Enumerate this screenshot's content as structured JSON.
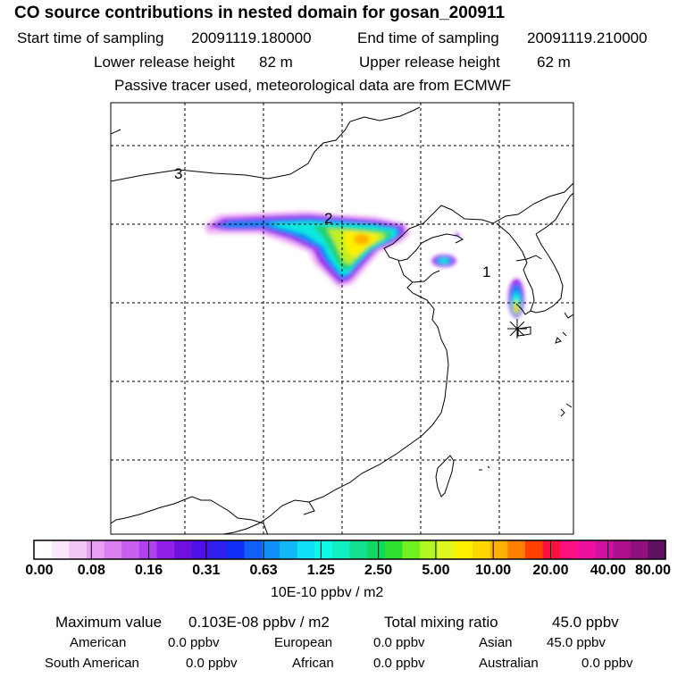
{
  "header": {
    "title": "CO  source contributions in nested domain for gosan_200911",
    "start_label": "Start time of sampling",
    "start_value": "20091119.180000",
    "end_label": "End time of sampling",
    "end_value": "20091119.210000",
    "lower_label": "Lower release height",
    "lower_value": "82 m",
    "upper_label": "Upper release height",
    "upper_value": "62 m",
    "tracer_note": "Passive tracer used, meteorological data are from ECMWF"
  },
  "map": {
    "region_labels": [
      "3",
      "2",
      "1"
    ],
    "receptor_marker": "asterisk-marker"
  },
  "colorbar": {
    "ticks": [
      "0.00",
      "0.08",
      "0.16",
      "0.31",
      "0.63",
      "1.25",
      "2.50",
      "5.00",
      "10.00",
      "20.00",
      "40.00",
      "80.00"
    ],
    "unit": "10E-10 ppbv / m2",
    "colors": [
      "#ffffff",
      "#fbe6fb",
      "#f4c8f6",
      "#eaa0f2",
      "#dc7ff0",
      "#c85ff0",
      "#b040f0",
      "#9020e8",
      "#7010e0",
      "#5010e8",
      "#3020f0",
      "#1030f8",
      "#1060f8",
      "#1090f8",
      "#10b8f8",
      "#10e0f8",
      "#10f8e8",
      "#10f0c0",
      "#10e090",
      "#10d860",
      "#30e030",
      "#70f020",
      "#b0f820",
      "#e0f820",
      "#fff000",
      "#ffd800",
      "#ffb000",
      "#ff8000",
      "#ff4000",
      "#ff1040",
      "#ff1080",
      "#f010a0",
      "#d010a0",
      "#b01090",
      "#901080",
      "#601060"
    ]
  },
  "summary": {
    "max_label": "Maximum value",
    "max_value": "0.103E-08 ppbv / m2",
    "total_label": "Total mixing ratio",
    "total_value": "45.0 ppbv",
    "regions": [
      {
        "name": "American",
        "value": "0.0 ppbv"
      },
      {
        "name": "European",
        "value": "0.0 ppbv"
      },
      {
        "name": "Asian",
        "value": "45.0 ppbv"
      },
      {
        "name": "South American",
        "value": "0.0 ppbv"
      },
      {
        "name": "African",
        "value": "0.0 ppbv"
      },
      {
        "name": "Australian",
        "value": "0.0 ppbv"
      }
    ]
  }
}
